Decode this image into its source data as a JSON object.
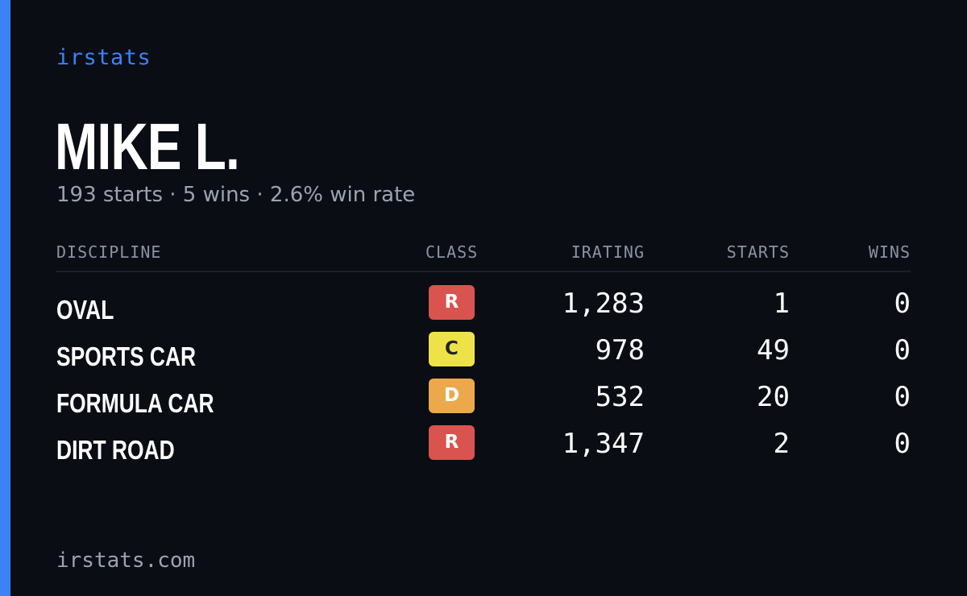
{
  "brand": "irstats",
  "driver": {
    "name": "MIKE L.",
    "summary": "193 starts · 5 wins · 2.6% win rate"
  },
  "table": {
    "headers": {
      "discipline": "DISCIPLINE",
      "class": "CLASS",
      "irating": "IRATING",
      "starts": "STARTS",
      "wins": "WINS"
    },
    "rows": [
      {
        "discipline": "OVAL",
        "class": "R",
        "irating": "1,283",
        "starts": "1",
        "wins": "0"
      },
      {
        "discipline": "SPORTS CAR",
        "class": "C",
        "irating": "978",
        "starts": "49",
        "wins": "0"
      },
      {
        "discipline": "FORMULA CAR",
        "class": "D",
        "irating": "532",
        "starts": "20",
        "wins": "0"
      },
      {
        "discipline": "DIRT ROAD",
        "class": "R",
        "irating": "1,347",
        "starts": "2",
        "wins": "0"
      }
    ]
  },
  "class_colors": {
    "R": "#d9534f",
    "C": "#ede348",
    "D": "#eca94c"
  },
  "accent_color": "#3b82f6",
  "footer": "irstats.com"
}
